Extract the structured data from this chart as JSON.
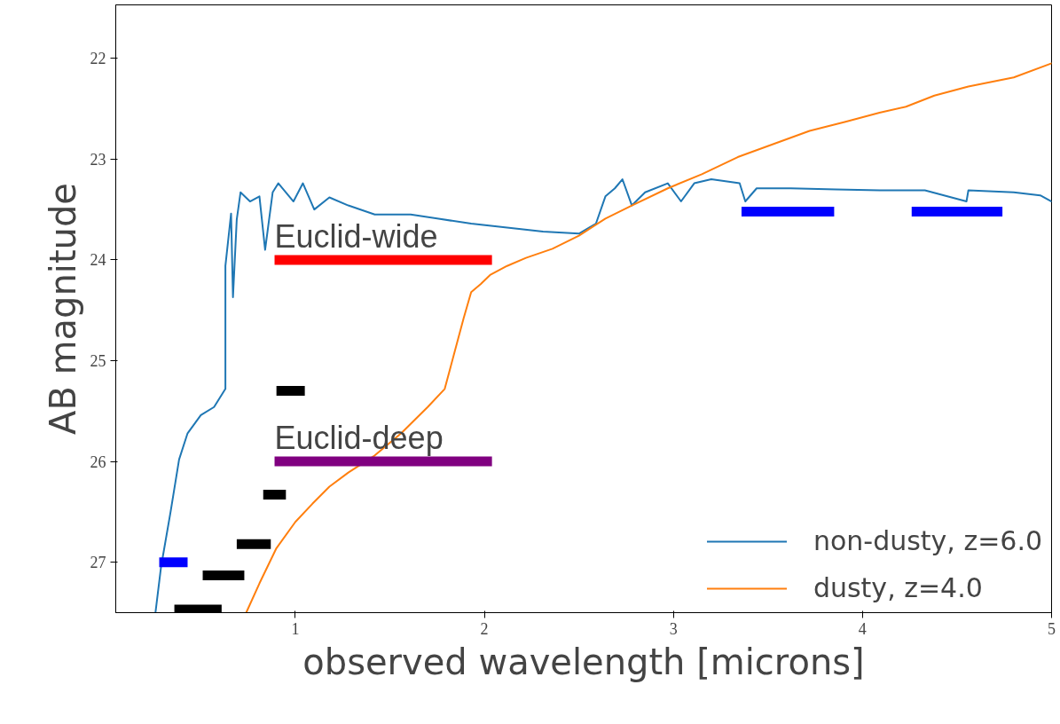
{
  "chart_data": {
    "type": "line",
    "xlabel": "observed wavelength [microns]",
    "ylabel": "AB magnitude",
    "xlim": [
      0.05,
      5
    ],
    "ylim": [
      27.5,
      21.47
    ],
    "xticks": [
      1,
      2,
      3,
      4,
      5
    ],
    "yticks": [
      22,
      23,
      24,
      25,
      26,
      27
    ],
    "grid": false,
    "legend": "bottom right",
    "marker": "none",
    "line_style": "solid",
    "series": [
      {
        "name": "non-dusty, z=6.0",
        "color": "#1f77b4",
        "x": [
          0.26,
          0.29,
          0.34,
          0.385,
          0.43,
          0.5,
          0.57,
          0.63,
          0.63,
          0.66,
          0.67,
          0.69,
          0.71,
          0.76,
          0.81,
          0.84,
          0.88,
          0.91,
          0.95,
          0.99,
          1.04,
          1.1,
          1.18,
          1.28,
          1.42,
          1.61,
          1.75,
          1.93,
          2.12,
          2.31,
          2.5,
          2.59,
          2.64,
          2.69,
          2.73,
          2.78,
          2.85,
          2.97,
          3.04,
          3.11,
          3.2,
          3.35,
          3.38,
          3.44,
          3.62,
          3.86,
          4.09,
          4.33,
          4.55,
          4.56,
          4.8,
          4.94,
          5.0
        ],
        "values": [
          27.5,
          27.04,
          26.5,
          25.98,
          25.72,
          25.54,
          25.46,
          25.28,
          24.06,
          23.54,
          24.37,
          23.6,
          23.33,
          23.42,
          23.37,
          23.9,
          23.33,
          23.24,
          23.33,
          23.42,
          23.24,
          23.5,
          23.38,
          23.46,
          23.55,
          23.55,
          23.59,
          23.64,
          23.68,
          23.72,
          23.74,
          23.64,
          23.37,
          23.29,
          23.2,
          23.46,
          23.33,
          23.24,
          23.42,
          23.24,
          23.2,
          23.24,
          23.42,
          23.29,
          23.29,
          23.3,
          23.31,
          23.31,
          23.42,
          23.31,
          23.33,
          23.36,
          23.42
        ]
      },
      {
        "name": "dusty, z=4.0",
        "color": "#ff7f0e",
        "x": [
          0.74,
          0.81,
          0.9,
          1.0,
          1.09,
          1.18,
          1.28,
          1.42,
          1.56,
          1.7,
          1.79,
          1.84,
          1.89,
          1.93,
          1.98,
          2.03,
          2.12,
          2.22,
          2.36,
          2.5,
          2.64,
          2.78,
          2.97,
          3.15,
          3.34,
          3.53,
          3.72,
          3.91,
          4.09,
          4.23,
          4.38,
          4.56,
          4.8,
          5.0
        ],
        "values": [
          27.5,
          27.21,
          26.86,
          26.6,
          26.42,
          26.25,
          26.11,
          25.94,
          25.72,
          25.46,
          25.28,
          24.93,
          24.58,
          24.32,
          24.24,
          24.15,
          24.06,
          23.98,
          23.89,
          23.76,
          23.59,
          23.46,
          23.29,
          23.15,
          22.98,
          22.85,
          22.72,
          22.63,
          22.54,
          22.48,
          22.37,
          22.28,
          22.19,
          22.05
        ]
      },
      {
        "color": "#ff0000",
        "x": [
          0.89,
          2.04
        ],
        "values": [
          24.0,
          24.0
        ]
      },
      {
        "color": "#800080",
        "x": [
          0.89,
          2.04
        ],
        "values": [
          26.0,
          26.0
        ]
      },
      {
        "color": "#0000ff",
        "x": [
          0.28,
          0.43
        ],
        "values": [
          27.0,
          27.0
        ]
      },
      {
        "color": "#0000ff",
        "x": [
          3.36,
          3.85
        ],
        "values": [
          23.52,
          23.52
        ]
      },
      {
        "color": "#0000ff",
        "x": [
          4.26,
          4.74
        ],
        "values": [
          23.52,
          23.52
        ]
      },
      {
        "color": "#000000",
        "x": [
          0.36,
          0.61
        ],
        "values": [
          27.47,
          27.47
        ]
      },
      {
        "color": "#000000",
        "x": [
          0.51,
          0.73
        ],
        "values": [
          27.13,
          27.13
        ]
      },
      {
        "color": "#000000",
        "x": [
          0.69,
          0.87
        ],
        "values": [
          26.82,
          26.82
        ]
      },
      {
        "color": "#000000",
        "x": [
          0.83,
          0.95
        ],
        "values": [
          26.33,
          26.33
        ]
      },
      {
        "color": "#000000",
        "x": [
          0.9,
          1.05
        ],
        "values": [
          25.3,
          25.3
        ]
      }
    ],
    "annotations": [
      {
        "text": "Euclid-wide",
        "x": 0.89,
        "y": 24.0
      },
      {
        "text": "Euclid-deep",
        "x": 0.89,
        "y": 26.0
      }
    ]
  }
}
